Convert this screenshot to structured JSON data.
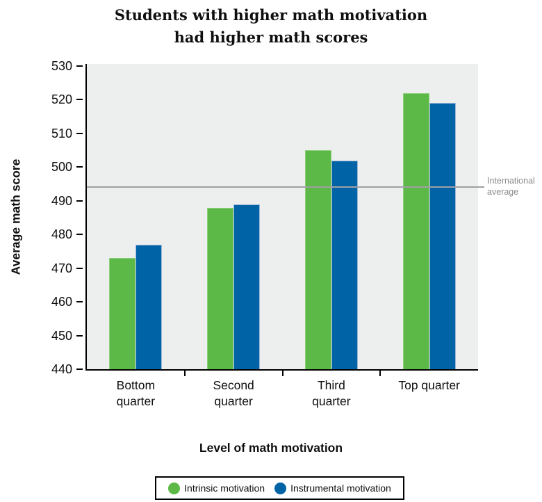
{
  "title": {
    "line1": "Students with higher math motivation",
    "line2": "had higher math scores"
  },
  "chart_data": {
    "type": "bar",
    "title": "Students with higher math motivation had higher math scores",
    "categories": [
      "Bottom quarter",
      "Second quarter",
      "Third quarter",
      "Top quarter"
    ],
    "series": [
      {
        "name": "Intrinsic motivation",
        "color": "#5cb947",
        "edge_color": "#8fd07e",
        "values": [
          473,
          488,
          505,
          522
        ]
      },
      {
        "name": "Instrumental motivation",
        "color": "#0063a6",
        "edge_color": "#9db8d9",
        "values": [
          477,
          489,
          502,
          519
        ]
      }
    ],
    "reference_line": {
      "value": 494,
      "label": "International average",
      "color": "#a0a0a4",
      "label_color": "#8a8a8a"
    },
    "xlabel": "Level of math motivation",
    "ylabel": "Average math score",
    "ylim": [
      440,
      530
    ],
    "ytick_step": 10,
    "grid": false,
    "legend_position": "bottom",
    "plot_background": "#edeeee",
    "axis_color": "#000000"
  }
}
